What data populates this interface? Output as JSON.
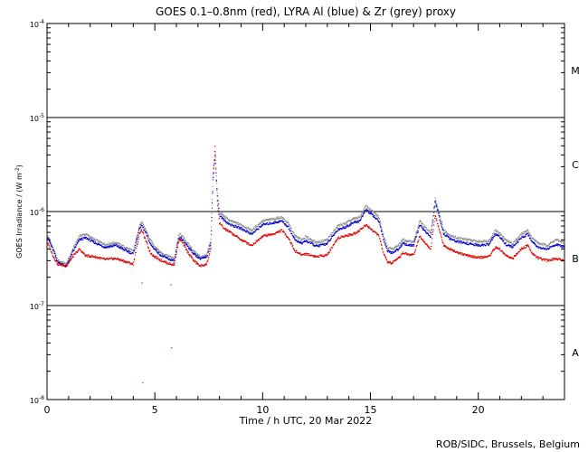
{
  "chart_data": {
    "type": "scatter",
    "title": "GOES 0.1–0.8nm (red), LYRA Al (blue) & Zr (grey) proxy",
    "xlabel": "Time / h UTC, 20 Mar 2022",
    "ylabel_main": "GOES Irradiance / (W m",
    "ylabel_exp": "-2",
    "ylabel_tail": ")",
    "credit": "ROB/SIDC, Brussels, Belgium",
    "xlim": [
      0,
      24
    ],
    "ylim_log10": [
      -8,
      -4
    ],
    "y_scale": "log",
    "x_ticks": [
      {
        "v": 0,
        "label": "0"
      },
      {
        "v": 5,
        "label": "5"
      },
      {
        "v": 10,
        "label": "10"
      },
      {
        "v": 15,
        "label": "15"
      },
      {
        "v": 20,
        "label": "20"
      }
    ],
    "y_ticks": [
      {
        "v": -4,
        "label": "10",
        "exp": "-4"
      },
      {
        "v": -5,
        "label": "10",
        "exp": "-5"
      },
      {
        "v": -6,
        "label": "10",
        "exp": "-6"
      },
      {
        "v": -7,
        "label": "10",
        "exp": "-7"
      },
      {
        "v": -8,
        "label": "10",
        "exp": "-8"
      }
    ],
    "class_lines": [
      -5,
      -6,
      -7
    ],
    "class_labels": [
      {
        "label": "M",
        "v": -4.5
      },
      {
        "label": "C",
        "v": -5.5
      },
      {
        "label": "B",
        "v": -6.5
      },
      {
        "label": "A",
        "v": -7.5
      }
    ],
    "series": [
      {
        "name": "Zr (grey)",
        "color": "#8c8c8c",
        "x": [
          0,
          0.3,
          0.5,
          0.9,
          1.2,
          1.5,
          1.8,
          2.2,
          2.7,
          3.2,
          3.6,
          4.0,
          4.3,
          4.4,
          4.6,
          4.8,
          5.0,
          5.3,
          5.6,
          5.9,
          6.1,
          6.2,
          6.5,
          6.8,
          7.1,
          7.4,
          7.6,
          7.7,
          7.8,
          7.9,
          8.0,
          8.2,
          8.5,
          9.0,
          9.5,
          10.0,
          10.5,
          10.9,
          11.2,
          11.5,
          11.8,
          12.0,
          12.5,
          13.0,
          13.5,
          13.8,
          14.2,
          14.5,
          14.8,
          15.0,
          15.4,
          15.6,
          15.8,
          16.0,
          16.3,
          16.5,
          16.8,
          17.0,
          17.3,
          17.5,
          17.8,
          18.0,
          18.2,
          18.4,
          18.7,
          19.0,
          19.5,
          20.0,
          20.5,
          20.8,
          21.0,
          21.3,
          21.6,
          22.0,
          22.3,
          22.5,
          22.8,
          23.2,
          23.6,
          24.0
        ],
        "y": [
          -6.24,
          -6.4,
          -6.52,
          -6.56,
          -6.4,
          -6.26,
          -6.24,
          -6.3,
          -6.35,
          -6.33,
          -6.38,
          -6.42,
          -6.14,
          -6.12,
          -6.2,
          -6.31,
          -6.37,
          -6.44,
          -6.47,
          -6.5,
          -6.26,
          -6.24,
          -6.33,
          -6.42,
          -6.48,
          -6.47,
          -6.3,
          -5.6,
          -5.36,
          -5.8,
          -6.0,
          -6.05,
          -6.1,
          -6.14,
          -6.2,
          -6.1,
          -6.08,
          -6.06,
          -6.13,
          -6.26,
          -6.3,
          -6.27,
          -6.33,
          -6.3,
          -6.15,
          -6.13,
          -6.08,
          -6.06,
          -5.94,
          -5.98,
          -6.06,
          -6.25,
          -6.38,
          -6.4,
          -6.36,
          -6.3,
          -6.32,
          -6.32,
          -6.1,
          -6.16,
          -6.23,
          -5.86,
          -6.02,
          -6.2,
          -6.25,
          -6.28,
          -6.3,
          -6.32,
          -6.31,
          -6.2,
          -6.23,
          -6.31,
          -6.34,
          -6.24,
          -6.2,
          -6.28,
          -6.34,
          -6.36,
          -6.3,
          -6.33
        ]
      },
      {
        "name": "LYRA Al (blue)",
        "color": "#0000c8",
        "x": [
          0,
          0.3,
          0.5,
          0.9,
          1.2,
          1.5,
          1.8,
          2.2,
          2.7,
          3.2,
          3.6,
          4.0,
          4.3,
          4.4,
          4.6,
          4.8,
          5.0,
          5.3,
          5.6,
          5.9,
          6.1,
          6.2,
          6.5,
          6.8,
          7.1,
          7.4,
          7.6,
          7.7,
          7.8,
          7.9,
          8.0,
          8.2,
          8.5,
          9.0,
          9.5,
          10.0,
          10.5,
          10.9,
          11.2,
          11.5,
          11.8,
          12.0,
          12.5,
          13.0,
          13.5,
          13.8,
          14.2,
          14.5,
          14.8,
          15.0,
          15.4,
          15.6,
          15.8,
          16.0,
          16.3,
          16.5,
          16.8,
          17.0,
          17.3,
          17.5,
          17.8,
          18.0,
          18.2,
          18.4,
          18.7,
          19.0,
          19.5,
          20.0,
          20.5,
          20.8,
          21.0,
          21.3,
          21.6,
          22.0,
          22.3,
          22.5,
          22.8,
          23.2,
          23.6,
          24.0
        ],
        "y": [
          -6.26,
          -6.42,
          -6.54,
          -6.58,
          -6.43,
          -6.3,
          -6.28,
          -6.33,
          -6.38,
          -6.36,
          -6.41,
          -6.45,
          -6.17,
          -6.15,
          -6.24,
          -6.35,
          -6.4,
          -6.47,
          -6.5,
          -6.53,
          -6.3,
          -6.28,
          -6.36,
          -6.45,
          -6.5,
          -6.49,
          -6.33,
          -5.64,
          -5.4,
          -5.84,
          -6.04,
          -6.09,
          -6.14,
          -6.18,
          -6.24,
          -6.14,
          -6.12,
          -6.1,
          -6.17,
          -6.3,
          -6.34,
          -6.31,
          -6.37,
          -6.34,
          -6.19,
          -6.17,
          -6.12,
          -6.1,
          -5.98,
          -6.02,
          -6.1,
          -6.29,
          -6.42,
          -6.44,
          -6.4,
          -6.34,
          -6.36,
          -6.36,
          -6.14,
          -6.2,
          -6.27,
          -5.9,
          -6.06,
          -6.24,
          -6.29,
          -6.32,
          -6.34,
          -6.36,
          -6.35,
          -6.24,
          -6.27,
          -6.35,
          -6.38,
          -6.28,
          -6.24,
          -6.32,
          -6.38,
          -6.4,
          -6.35,
          -6.38
        ]
      },
      {
        "name": "GOES 0.1–0.8nm (red)",
        "color": "#dc0000",
        "x": [
          0,
          0.3,
          0.5,
          0.9,
          1.2,
          1.5,
          1.8,
          2.2,
          2.7,
          3.2,
          3.6,
          4.0,
          4.3,
          4.4,
          4.6,
          4.8,
          5.0,
          5.3,
          5.6,
          5.9,
          6.1,
          6.2,
          6.5,
          6.8,
          7.1,
          7.4,
          7.6,
          7.7,
          7.8,
          7.9,
          8.0,
          8.2,
          8.5,
          9.0,
          9.5,
          10.0,
          10.5,
          10.9,
          11.2,
          11.5,
          11.8,
          12.0,
          12.5,
          13.0,
          13.5,
          13.8,
          14.2,
          14.5,
          14.8,
          15.0,
          15.4,
          15.6,
          15.8,
          16.0,
          16.3,
          16.5,
          16.8,
          17.0,
          17.3,
          17.5,
          17.8,
          18.0,
          18.2,
          18.4,
          18.7,
          19.0,
          19.5,
          20.0,
          20.5,
          20.8,
          21.0,
          21.3,
          21.6,
          22.0,
          22.3,
          22.5,
          22.8,
          23.2,
          23.6,
          24.0
        ],
        "y": [
          -6.32,
          -6.48,
          -6.56,
          -6.58,
          -6.48,
          -6.4,
          -6.47,
          -6.48,
          -6.51,
          -6.5,
          -6.53,
          -6.56,
          -6.22,
          -6.2,
          -6.32,
          -6.44,
          -6.48,
          -6.52,
          -6.55,
          -6.57,
          -6.32,
          -6.3,
          -6.42,
          -6.52,
          -6.58,
          -6.56,
          -6.4,
          -5.66,
          -5.3,
          -5.9,
          -6.12,
          -6.18,
          -6.22,
          -6.3,
          -6.36,
          -6.26,
          -6.24,
          -6.2,
          -6.28,
          -6.42,
          -6.46,
          -6.45,
          -6.48,
          -6.46,
          -6.28,
          -6.26,
          -6.24,
          -6.2,
          -6.14,
          -6.18,
          -6.26,
          -6.44,
          -6.54,
          -6.55,
          -6.5,
          -6.44,
          -6.46,
          -6.46,
          -6.26,
          -6.32,
          -6.4,
          -6.04,
          -6.2,
          -6.36,
          -6.4,
          -6.43,
          -6.47,
          -6.49,
          -6.48,
          -6.38,
          -6.4,
          -6.47,
          -6.5,
          -6.4,
          -6.36,
          -6.44,
          -6.5,
          -6.52,
          -6.5,
          -6.52
        ]
      }
    ],
    "outliers": [
      {
        "x": 4.4,
        "y": -6.76,
        "color": "#dc0000"
      },
      {
        "x": 4.45,
        "y": -7.82,
        "color": "#dc0000"
      },
      {
        "x": 5.75,
        "y": -6.78,
        "color": "#dc0000"
      },
      {
        "x": 5.78,
        "y": -7.45,
        "color": "#dc0000"
      }
    ]
  }
}
